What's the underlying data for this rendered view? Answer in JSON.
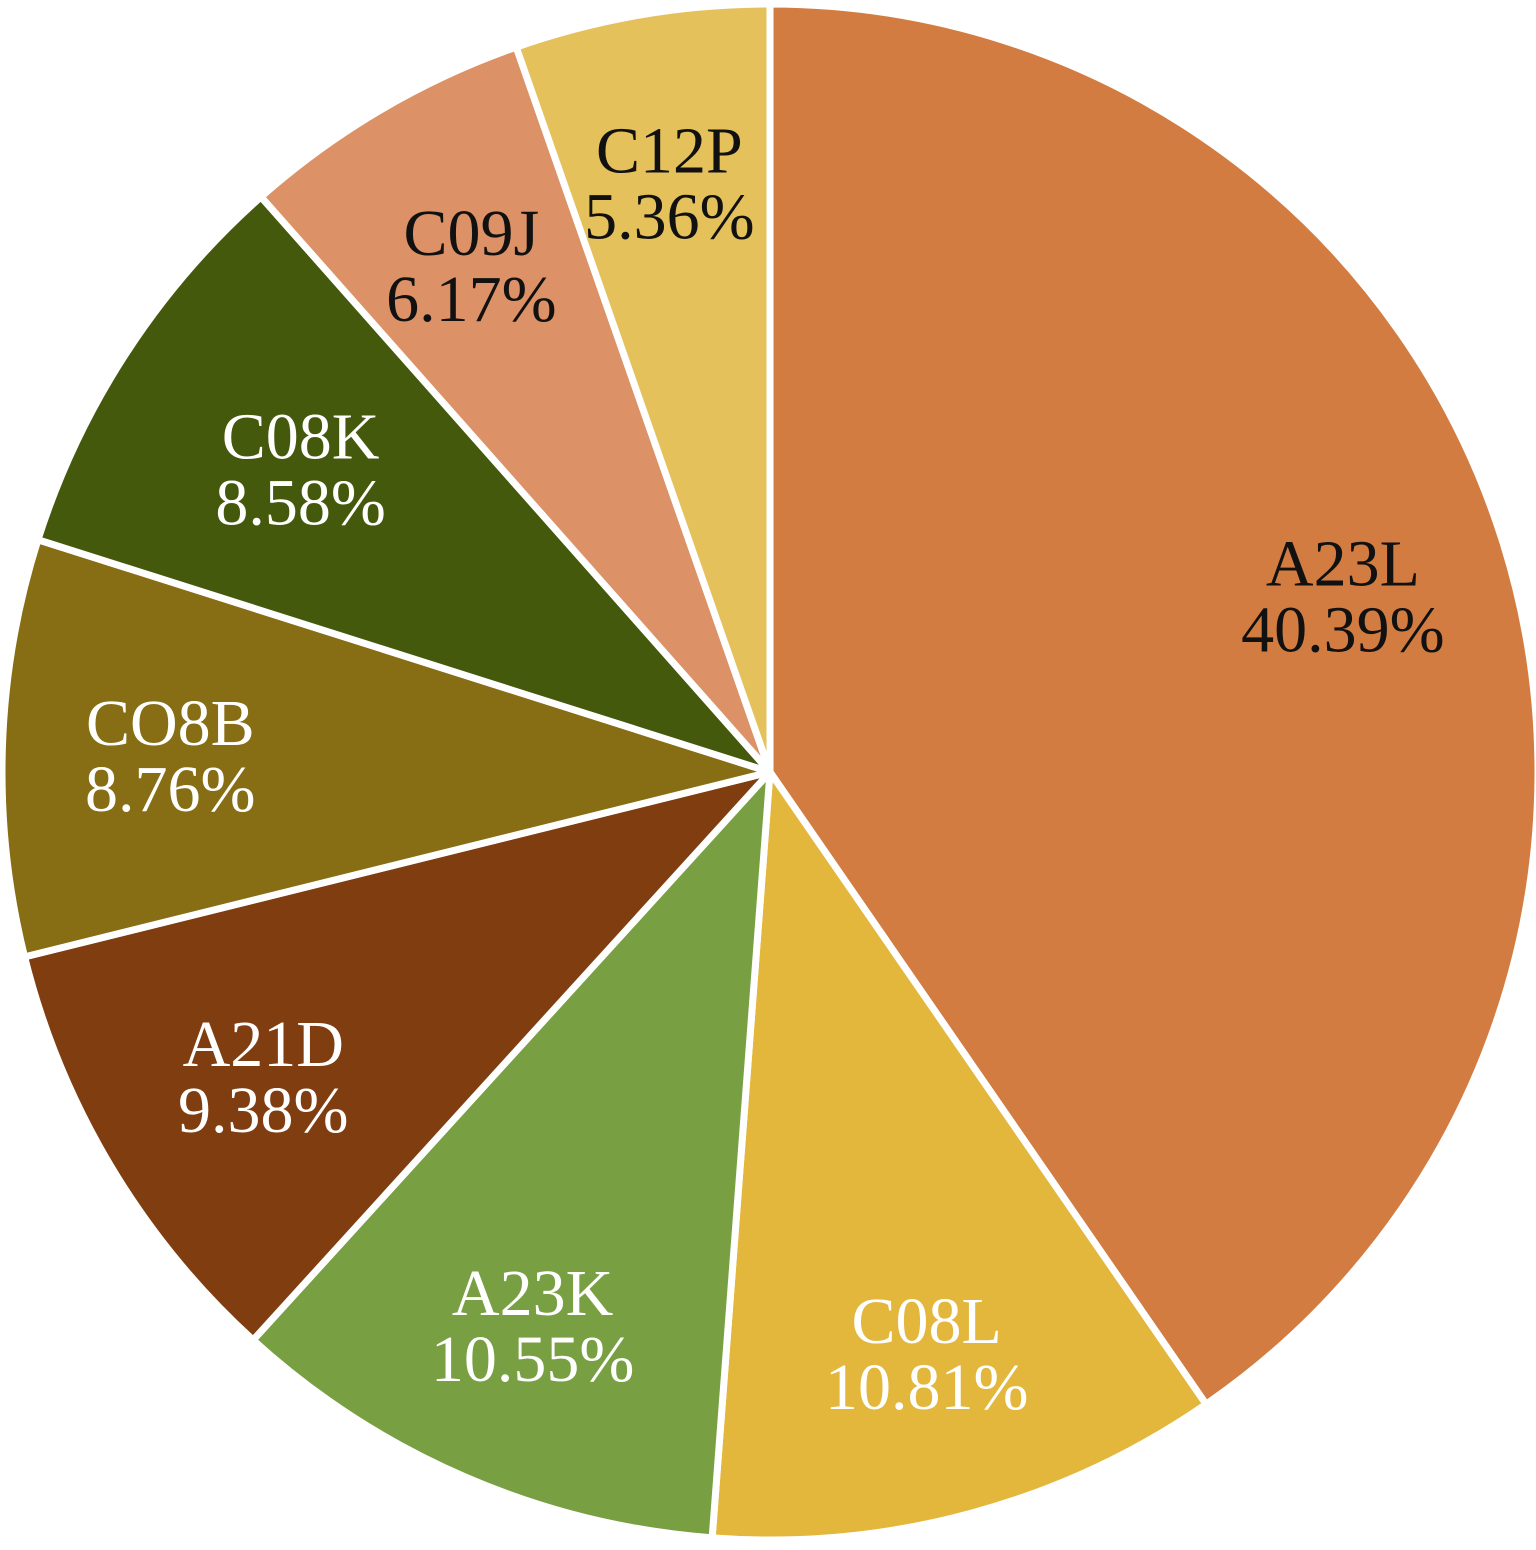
{
  "chart_data": {
    "type": "pie",
    "start_angle_deg": 90,
    "direction": "clockwise",
    "slices": [
      {
        "name": "A23L",
        "value": 40.39,
        "label": "40.39%",
        "color": "#d27c41",
        "text_color": "#111111"
      },
      {
        "name": "C08L",
        "value": 10.81,
        "label": "10.81%",
        "color": "#e3b63c",
        "text_color": "#ffffff"
      },
      {
        "name": "A23K",
        "value": 10.55,
        "label": "10.55%",
        "color": "#78a042",
        "text_color": "#ffffff"
      },
      {
        "name": "A21D",
        "value": 9.38,
        "label": "9.38%",
        "color": "#7f3d10",
        "text_color": "#ffffff"
      },
      {
        "name": "CO8B",
        "value": 8.76,
        "label": "8.76%",
        "color": "#876d13",
        "text_color": "#ffffff"
      },
      {
        "name": "C08K",
        "value": 8.58,
        "label": "8.58%",
        "color": "#45590d",
        "text_color": "#ffffff"
      },
      {
        "name": "C09J",
        "value": 6.17,
        "label": "6.17%",
        "color": "#dc9166",
        "text_color": "#111111"
      },
      {
        "name": "C12P",
        "value": 5.36,
        "label": "5.36%",
        "color": "#e4c15b",
        "text_color": "#111111"
      }
    ]
  }
}
